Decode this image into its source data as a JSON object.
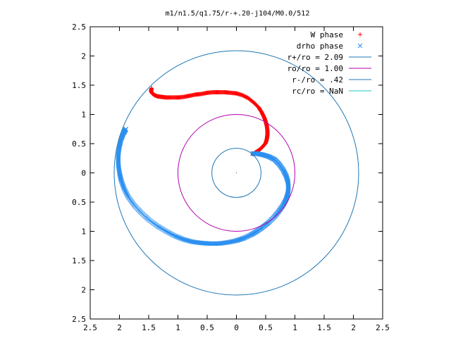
{
  "chart_data": {
    "type": "scatter",
    "title": "m1/n1.5/q1.75/r-+.20-j104/M0.0/512",
    "xlabel": "",
    "ylabel": "",
    "xlim": [
      -2.5,
      2.5
    ],
    "ylim": [
      -2.5,
      2.5
    ],
    "x_tick_values": [
      -2.5,
      -2,
      -1.5,
      -1,
      -0.5,
      0,
      0.5,
      1,
      1.5,
      2,
      2.5
    ],
    "x_tick_labels": [
      "2.5",
      "2",
      "1.5",
      "1",
      "0.5",
      "0",
      "0.5",
      "1",
      "1.5",
      "2",
      "2.5"
    ],
    "y_tick_values": [
      2.5,
      2,
      1.5,
      1,
      0.5,
      0,
      -0.5,
      -1,
      -1.5,
      -2,
      -2.5
    ],
    "y_tick_labels": [
      "2.5",
      "2",
      "1.5",
      "1",
      "0.5",
      "0",
      "0.5",
      "1",
      "1.5",
      "2",
      "2.5"
    ],
    "grid": false,
    "legend_position": "top-right",
    "series": [
      {
        "name": "W phase",
        "kind": "points",
        "marker": "plus",
        "color": "#ff0000",
        "x": [
          -1.45,
          -1.46,
          -1.44,
          -1.4,
          -1.35,
          -1.28,
          -1.2,
          -1.1,
          -1.0,
          -0.9,
          -0.8,
          -0.7,
          -0.6,
          -0.5,
          -0.4,
          -0.3,
          -0.2,
          -0.1,
          0.0,
          0.1,
          0.2,
          0.3,
          0.38,
          0.43,
          0.47,
          0.5,
          0.52,
          0.53,
          0.53,
          0.52,
          0.5,
          0.46,
          0.4,
          0.34,
          0.28
        ],
        "y": [
          1.45,
          1.4,
          1.36,
          1.33,
          1.31,
          1.3,
          1.29,
          1.29,
          1.29,
          1.3,
          1.32,
          1.34,
          1.35,
          1.37,
          1.38,
          1.38,
          1.38,
          1.37,
          1.36,
          1.33,
          1.28,
          1.2,
          1.12,
          1.04,
          0.96,
          0.88,
          0.8,
          0.72,
          0.65,
          0.58,
          0.51,
          0.46,
          0.4,
          0.36,
          0.32
        ]
      },
      {
        "name": "drho phase",
        "kind": "points",
        "marker": "x",
        "color": "#2a8ff0",
        "x": [
          0.28,
          0.35,
          0.45,
          0.55,
          0.65,
          0.73,
          0.8,
          0.85,
          0.88,
          0.89,
          0.88,
          0.85,
          0.8,
          0.73,
          0.65,
          0.55,
          0.45,
          0.35,
          0.25,
          0.12,
          0.0,
          -0.15,
          -0.3,
          -0.45,
          -0.6,
          -0.75,
          -0.9,
          -1.05,
          -1.2,
          -1.35,
          -1.5,
          -1.63,
          -1.75,
          -1.85,
          -1.92,
          -1.97,
          -2.0,
          -2.02,
          -2.02,
          -2.0,
          -1.97,
          -1.93,
          -1.89
        ],
        "y": [
          0.33,
          0.33,
          0.31,
          0.28,
          0.23,
          0.15,
          0.05,
          -0.05,
          -0.15,
          -0.25,
          -0.35,
          -0.45,
          -0.55,
          -0.65,
          -0.75,
          -0.85,
          -0.93,
          -1.0,
          -1.06,
          -1.12,
          -1.16,
          -1.19,
          -1.21,
          -1.21,
          -1.2,
          -1.18,
          -1.14,
          -1.08,
          -1.0,
          -0.91,
          -0.8,
          -0.68,
          -0.55,
          -0.41,
          -0.27,
          -0.13,
          0.0,
          0.15,
          0.3,
          0.45,
          0.58,
          0.68,
          0.75
        ]
      },
      {
        "name": "r+/ro = 2.09",
        "kind": "circle",
        "radius": 2.09,
        "color": "#1f77b4"
      },
      {
        "name": "ro/ro = 1.00",
        "kind": "circle",
        "radius": 1.0,
        "color": "#b000b0"
      },
      {
        "name": "r-/ro = .42",
        "kind": "circle",
        "radius": 0.42,
        "color": "#1f77b4"
      },
      {
        "name": "rc/ro = NaN",
        "kind": "circle",
        "radius": null,
        "color": "#19c8c8"
      }
    ]
  }
}
